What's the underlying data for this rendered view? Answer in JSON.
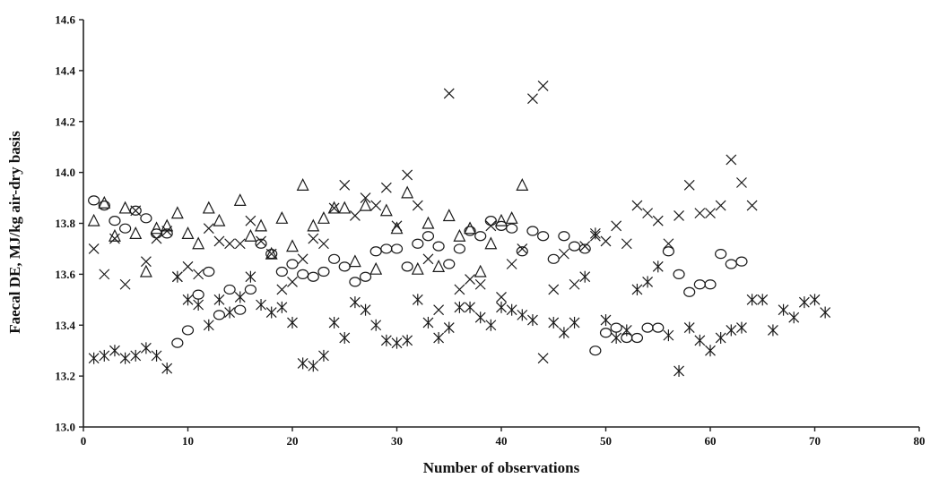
{
  "chart_data": {
    "type": "scatter",
    "xlabel": "Number of observations",
    "ylabel": "Faecal DE, MJ/kg air-dry basis",
    "xlim": [
      0,
      80
    ],
    "ylim": [
      13.0,
      14.6
    ],
    "x_ticks": [
      "0",
      "10",
      "20",
      "30",
      "40",
      "50",
      "60",
      "70",
      "80"
    ],
    "y_ticks": [
      "13.0",
      "13.2",
      "13.4",
      "13.6",
      "13.8",
      "14.0",
      "14.2",
      "14.4",
      "14.6"
    ],
    "grid": false,
    "legend": "none",
    "series": [
      {
        "marker": "triangle",
        "points": [
          [
            1,
            13.81
          ],
          [
            2,
            13.88
          ],
          [
            3,
            13.75
          ],
          [
            4,
            13.86
          ],
          [
            5,
            13.76
          ],
          [
            6,
            13.61
          ],
          [
            7,
            13.78
          ],
          [
            8,
            13.79
          ],
          [
            9,
            13.84
          ],
          [
            10,
            13.76
          ],
          [
            11,
            13.72
          ],
          [
            12,
            13.86
          ],
          [
            13,
            13.81
          ],
          [
            15,
            13.89
          ],
          [
            16,
            13.75
          ],
          [
            17,
            13.79
          ],
          [
            18,
            13.68
          ],
          [
            19,
            13.82
          ],
          [
            20,
            13.71
          ],
          [
            21,
            13.95
          ],
          [
            22,
            13.79
          ],
          [
            23,
            13.82
          ],
          [
            24,
            13.86
          ],
          [
            25,
            13.86
          ],
          [
            26,
            13.65
          ],
          [
            27,
            13.87
          ],
          [
            28,
            13.62
          ],
          [
            29,
            13.85
          ],
          [
            30,
            13.78
          ],
          [
            31,
            13.92
          ],
          [
            32,
            13.62
          ],
          [
            33,
            13.8
          ],
          [
            34,
            13.63
          ],
          [
            35,
            13.83
          ],
          [
            36,
            13.75
          ],
          [
            37,
            13.78
          ],
          [
            38,
            13.61
          ],
          [
            39,
            13.72
          ],
          [
            40,
            13.81
          ],
          [
            41,
            13.82
          ],
          [
            42,
            13.95
          ]
        ]
      },
      {
        "marker": "circle",
        "points": [
          [
            1,
            13.89
          ],
          [
            2,
            13.87
          ],
          [
            3,
            13.81
          ],
          [
            4,
            13.78
          ],
          [
            5,
            13.85
          ],
          [
            6,
            13.82
          ],
          [
            7,
            13.76
          ],
          [
            8,
            13.76
          ],
          [
            9,
            13.33
          ],
          [
            10,
            13.38
          ],
          [
            11,
            13.52
          ],
          [
            12,
            13.61
          ],
          [
            13,
            13.44
          ],
          [
            14,
            13.54
          ],
          [
            15,
            13.46
          ],
          [
            16,
            13.54
          ],
          [
            17,
            13.72
          ],
          [
            18,
            13.68
          ],
          [
            19,
            13.61
          ],
          [
            20,
            13.64
          ],
          [
            21,
            13.6
          ],
          [
            22,
            13.59
          ],
          [
            23,
            13.61
          ],
          [
            24,
            13.66
          ],
          [
            25,
            13.63
          ],
          [
            26,
            13.57
          ],
          [
            27,
            13.59
          ],
          [
            28,
            13.69
          ],
          [
            29,
            13.7
          ],
          [
            30,
            13.7
          ],
          [
            31,
            13.63
          ],
          [
            32,
            13.72
          ],
          [
            33,
            13.75
          ],
          [
            34,
            13.71
          ],
          [
            35,
            13.64
          ],
          [
            36,
            13.7
          ],
          [
            37,
            13.77
          ],
          [
            38,
            13.75
          ],
          [
            39,
            13.81
          ],
          [
            40,
            13.79
          ],
          [
            41,
            13.78
          ],
          [
            42,
            13.69
          ],
          [
            43,
            13.77
          ],
          [
            44,
            13.75
          ],
          [
            45,
            13.66
          ],
          [
            46,
            13.75
          ],
          [
            47,
            13.71
          ],
          [
            48,
            13.7
          ],
          [
            49,
            13.3
          ],
          [
            50,
            13.37
          ],
          [
            51,
            13.39
          ],
          [
            52,
            13.35
          ],
          [
            53,
            13.35
          ],
          [
            54,
            13.39
          ],
          [
            55,
            13.39
          ],
          [
            56,
            13.69
          ],
          [
            57,
            13.6
          ],
          [
            58,
            13.53
          ],
          [
            59,
            13.56
          ],
          [
            60,
            13.56
          ],
          [
            61,
            13.68
          ],
          [
            62,
            13.64
          ],
          [
            63,
            13.65
          ]
        ]
      },
      {
        "marker": "x",
        "points": [
          [
            1,
            13.7
          ],
          [
            2,
            13.6
          ],
          [
            3,
            13.74
          ],
          [
            4,
            13.56
          ],
          [
            5,
            13.85
          ],
          [
            6,
            13.65
          ],
          [
            7,
            13.74
          ],
          [
            8,
            13.77
          ],
          [
            9,
            13.59
          ],
          [
            10,
            13.63
          ],
          [
            11,
            13.6
          ],
          [
            12,
            13.78
          ],
          [
            13,
            13.73
          ],
          [
            14,
            13.72
          ],
          [
            15,
            13.72
          ],
          [
            16,
            13.81
          ],
          [
            17,
            13.73
          ],
          [
            18,
            13.68
          ],
          [
            19,
            13.54
          ],
          [
            20,
            13.57
          ],
          [
            21,
            13.66
          ],
          [
            22,
            13.74
          ],
          [
            23,
            13.72
          ],
          [
            24,
            13.86
          ],
          [
            25,
            13.95
          ],
          [
            26,
            13.83
          ],
          [
            27,
            13.9
          ],
          [
            28,
            13.87
          ],
          [
            29,
            13.94
          ],
          [
            30,
            13.79
          ],
          [
            31,
            13.99
          ],
          [
            32,
            13.87
          ],
          [
            33,
            13.66
          ],
          [
            34,
            13.46
          ],
          [
            35,
            14.31
          ],
          [
            36,
            13.54
          ],
          [
            37,
            13.58
          ],
          [
            38,
            13.56
          ],
          [
            39,
            13.79
          ],
          [
            40,
            13.51
          ],
          [
            41,
            13.64
          ],
          [
            42,
            13.7
          ],
          [
            43,
            14.29
          ],
          [
            44,
            14.34
          ],
          [
            44,
            13.27
          ],
          [
            45,
            13.54
          ],
          [
            46,
            13.68
          ],
          [
            47,
            13.56
          ],
          [
            48,
            13.71
          ],
          [
            49,
            13.75
          ],
          [
            50,
            13.73
          ],
          [
            51,
            13.79
          ],
          [
            52,
            13.72
          ],
          [
            53,
            13.87
          ],
          [
            54,
            13.84
          ],
          [
            55,
            13.81
          ],
          [
            56,
            13.72
          ],
          [
            57,
            13.83
          ],
          [
            58,
            13.95
          ],
          [
            59,
            13.84
          ],
          [
            60,
            13.84
          ],
          [
            61,
            13.87
          ],
          [
            62,
            14.05
          ],
          [
            63,
            13.96
          ],
          [
            64,
            13.87
          ]
        ]
      },
      {
        "marker": "asterisk",
        "points": [
          [
            1,
            13.27
          ],
          [
            2,
            13.28
          ],
          [
            3,
            13.3
          ],
          [
            4,
            13.27
          ],
          [
            5,
            13.28
          ],
          [
            6,
            13.31
          ],
          [
            7,
            13.28
          ],
          [
            8,
            13.23
          ],
          [
            9,
            13.59
          ],
          [
            10,
            13.5
          ],
          [
            11,
            13.48
          ],
          [
            12,
            13.4
          ],
          [
            13,
            13.5
          ],
          [
            14,
            13.45
          ],
          [
            15,
            13.51
          ],
          [
            16,
            13.59
          ],
          [
            17,
            13.48
          ],
          [
            18,
            13.45
          ],
          [
            19,
            13.47
          ],
          [
            20,
            13.41
          ],
          [
            21,
            13.25
          ],
          [
            22,
            13.24
          ],
          [
            23,
            13.28
          ],
          [
            24,
            13.41
          ],
          [
            25,
            13.35
          ],
          [
            26,
            13.49
          ],
          [
            27,
            13.46
          ],
          [
            28,
            13.4
          ],
          [
            29,
            13.34
          ],
          [
            30,
            13.33
          ],
          [
            31,
            13.34
          ],
          [
            32,
            13.5
          ],
          [
            33,
            13.41
          ],
          [
            34,
            13.35
          ],
          [
            35,
            13.39
          ],
          [
            36,
            13.47
          ],
          [
            37,
            13.47
          ],
          [
            38,
            13.43
          ],
          [
            39,
            13.4
          ],
          [
            40,
            13.47
          ],
          [
            41,
            13.46
          ],
          [
            42,
            13.44
          ],
          [
            43,
            13.42
          ],
          [
            45,
            13.41
          ],
          [
            46,
            13.37
          ],
          [
            47,
            13.41
          ],
          [
            48,
            13.59
          ],
          [
            49,
            13.76
          ],
          [
            50,
            13.42
          ],
          [
            51,
            13.35
          ],
          [
            52,
            13.38
          ],
          [
            53,
            13.54
          ],
          [
            54,
            13.57
          ],
          [
            55,
            13.63
          ],
          [
            56,
            13.36
          ],
          [
            57,
            13.22
          ],
          [
            58,
            13.39
          ],
          [
            59,
            13.34
          ],
          [
            60,
            13.3
          ],
          [
            61,
            13.35
          ],
          [
            62,
            13.38
          ],
          [
            63,
            13.39
          ],
          [
            64,
            13.5
          ],
          [
            65,
            13.5
          ],
          [
            66,
            13.38
          ],
          [
            67,
            13.46
          ],
          [
            68,
            13.43
          ],
          [
            69,
            13.49
          ],
          [
            70,
            13.5
          ],
          [
            71,
            13.45
          ]
        ]
      }
    ]
  }
}
